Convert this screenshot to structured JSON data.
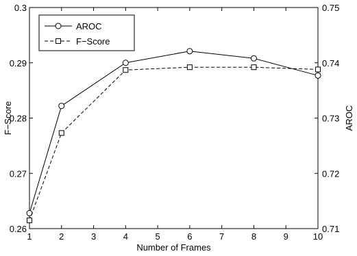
{
  "chart_data": {
    "type": "line",
    "title": "",
    "xlabel": "Number of Frames",
    "ylabel_left": "F−Score",
    "ylabel_right": "AROC",
    "xlim": [
      1,
      10
    ],
    "ylim_left": [
      0.26,
      0.3
    ],
    "ylim_right": [
      0.71,
      0.75
    ],
    "x_ticks": [
      1,
      2,
      3,
      4,
      5,
      6,
      7,
      8,
      9,
      10
    ],
    "x_tick_labels": [
      "1",
      "2",
      "3",
      "4",
      "5",
      "6",
      "7",
      "8",
      "9",
      "10"
    ],
    "y_left_ticks": [
      0.26,
      0.27,
      0.28,
      0.29,
      0.3
    ],
    "y_left_tick_labels": [
      "0.26",
      "0.27",
      "0.28",
      "0.29",
      "0.3"
    ],
    "y_right_ticks": [
      0.71,
      0.72,
      0.73,
      0.74,
      0.75
    ],
    "y_right_tick_labels": [
      "0.71",
      "0.72",
      "0.73",
      "0.74",
      "0.75"
    ],
    "grid": false,
    "legend_position": "top-left",
    "series": [
      {
        "name": "AROC",
        "axis": "right",
        "marker": "circle",
        "line_style": "solid",
        "color": "#000000",
        "x": [
          1,
          2,
          4,
          6,
          8,
          10
        ],
        "values": [
          0.7128,
          0.7322,
          0.74,
          0.7421,
          0.7408,
          0.7377
        ]
      },
      {
        "name": "F−Score",
        "axis": "left",
        "marker": "square",
        "line_style": "dashed",
        "color": "#000000",
        "x": [
          1,
          2,
          4,
          6,
          8,
          10
        ],
        "values": [
          0.2615,
          0.2773,
          0.2887,
          0.2892,
          0.2892,
          0.2888
        ]
      }
    ]
  }
}
